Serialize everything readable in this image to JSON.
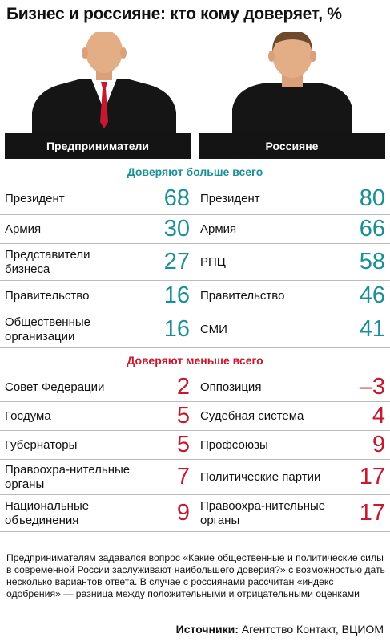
{
  "chart_data": {
    "type": "table",
    "title": "Бизнес и россияне: кто кому доверяет, %",
    "columns": [
      "Предприниматели",
      "Россияне"
    ],
    "sections": [
      {
        "heading": "Доверяют больше всего",
        "color": "#1a8f96",
        "rows": [
          {
            "left": {
              "label": "Президент",
              "value": "68"
            },
            "right": {
              "label": "Президент",
              "value": "80"
            }
          },
          {
            "left": {
              "label": "Армия",
              "value": "30"
            },
            "right": {
              "label": "Армия",
              "value": "66"
            }
          },
          {
            "left": {
              "label": "Представители бизнеса",
              "value": "27"
            },
            "right": {
              "label": "РПЦ",
              "value": "58"
            }
          },
          {
            "left": {
              "label": "Правительство",
              "value": "16"
            },
            "right": {
              "label": "Правительство",
              "value": "46"
            }
          },
          {
            "left": {
              "label": "Общественные организации",
              "value": "16"
            },
            "right": {
              "label": "СМИ",
              "value": "41"
            }
          }
        ]
      },
      {
        "heading": "Доверяют меньше всего",
        "color": "#c4192e",
        "rows": [
          {
            "left": {
              "label": "Совет Федерации",
              "value": "2"
            },
            "right": {
              "label": "Оппозиция",
              "value": "–3"
            }
          },
          {
            "left": {
              "label": "Госдума",
              "value": "5"
            },
            "right": {
              "label": "Судебная система",
              "value": "4"
            }
          },
          {
            "left": {
              "label": "Губернаторы",
              "value": "5"
            },
            "right": {
              "label": "Профсоюзы",
              "value": "9"
            }
          },
          {
            "left": {
              "label": "Правоохра-нительные органы",
              "value": "7"
            },
            "right": {
              "label": "Политические партии",
              "value": "17"
            }
          },
          {
            "left": {
              "label": "Национальные объединения",
              "value": "9"
            },
            "right": {
              "label": "Правоохра-нительные органы",
              "value": "17"
            }
          }
        ]
      }
    ]
  },
  "title": "Бизнес и россияне: кто кому доверяет, %",
  "left_header": "Предприниматели",
  "right_header": "Россияне",
  "section_top": "Доверяют больше всего",
  "section_bottom": "Доверяют меньше всего",
  "note": "Предпринимателям задавался вопрос «Какие общественные и политические силы в современной России заслуживают наибольшего доверия?» с возможностью дать несколько вариантов ответа. В случае с россиянами рассчитан «индекс одобрения» — разница между положительными и отрицательными оценками",
  "sources_label": "Источники:",
  "sources_text": "Агентство Контакт, ВЦИОМ",
  "icons": [
    "businessman-icon",
    "person-icon"
  ]
}
